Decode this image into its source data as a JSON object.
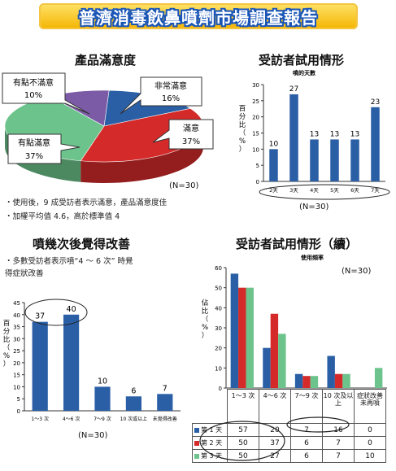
{
  "header": {
    "title": "普濟消毒飲鼻噴劑市場調查報告"
  },
  "colors": {
    "blue": "#2a5fa6",
    "red": "#d42a2a",
    "green": "#6cc38b",
    "purple": "#7b5aa6",
    "banner_text_outline": "#1a56b8"
  },
  "satisfaction": {
    "title": "產品滿意度",
    "n_label": "(N=30)",
    "notes": [
      "・使用後，9 成受訪者表示滿意，產品滿意度佳",
      "・加權平均值 4.6，高於標準值 4"
    ],
    "chart_data": {
      "type": "pie",
      "slices": [
        {
          "label": "非常滿意",
          "pct_label": "16%",
          "value": 16,
          "color": "#2a5fa6"
        },
        {
          "label": "滿意",
          "pct_label": "37%",
          "value": 37,
          "color": "#d42a2a"
        },
        {
          "label": "有點滿意",
          "pct_label": "37%",
          "value": 37,
          "color": "#6cc38b"
        },
        {
          "label": "有點不滿意",
          "pct_label": "10%",
          "value": 10,
          "color": "#7b5aa6"
        }
      ]
    }
  },
  "trial": {
    "title": "受訪者試用情形",
    "subtitle": "噴的天數",
    "n_label": "(N=30)",
    "chart_data": {
      "type": "bar",
      "ylabel": "百分比（%）",
      "categories": [
        "2天",
        "3天",
        "4天",
        "5天",
        "6天",
        "7天"
      ],
      "values": [
        10,
        27,
        13,
        13,
        13,
        23
      ],
      "ylim": [
        0,
        30
      ],
      "yticks": [
        0,
        5,
        10,
        15,
        20,
        25,
        30
      ],
      "color": "#2a5fa6"
    }
  },
  "improve": {
    "title": "噴幾次後覺得改善",
    "n_label": "(N=30)",
    "notes": [
      "・多數受訪者表示噴“4 ～ 6 次” 時覺",
      "  得症狀改善"
    ],
    "chart_data": {
      "type": "bar",
      "ylabel": "百分比（%）",
      "categories": [
        "1～3 次",
        "4～6 次",
        "7～9 次",
        "10 次或以上",
        "未覺得改善"
      ],
      "values": [
        37,
        40,
        10,
        6,
        7
      ],
      "ylim": [
        0,
        45
      ],
      "yticks": [
        0,
        5,
        10,
        15,
        20,
        25,
        30,
        35,
        40,
        45
      ],
      "color": "#2a5fa6"
    }
  },
  "trial2": {
    "title": "受訪者試用情形（續）",
    "subtitle": "使用頻率",
    "n_label": "(N=30)",
    "chart_data": {
      "type": "bar",
      "ylabel": "佔比（%）",
      "categories": [
        "1～3 次",
        "4～6 次",
        "7～9 次",
        "10 次及以上",
        "症狀改善未再噴"
      ],
      "ylim": [
        0,
        60
      ],
      "yticks": [
        0,
        10,
        20,
        30,
        40,
        50,
        60
      ],
      "series": [
        {
          "name": "第 1 天",
          "values": [
            57,
            20,
            7,
            16,
            0
          ],
          "color": "#2a5fa6"
        },
        {
          "name": "第 2 天",
          "values": [
            50,
            37,
            6,
            7,
            0
          ],
          "color": "#d42a2a"
        },
        {
          "name": "第 3 天",
          "values": [
            50,
            27,
            6,
            7,
            10
          ],
          "color": "#6cc38b"
        }
      ]
    }
  }
}
